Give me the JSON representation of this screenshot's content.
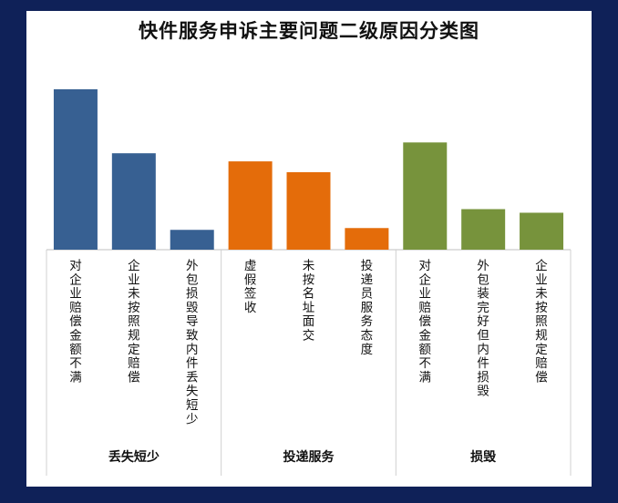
{
  "chart_data": {
    "type": "bar",
    "title": "快件服务申诉主要问题二级原因分类图",
    "xlabel": "",
    "ylabel": "",
    "ylim": [
      0,
      180
    ],
    "grid": false,
    "legend": "none",
    "groups": [
      {
        "label": "丢失短少",
        "color": "#376092",
        "categories": [
          "对企业赔偿金额不满",
          "企业未按照规定赔偿",
          "外包损毁导致内件丢失短少"
        ],
        "values": [
          178,
          107,
          22
        ]
      },
      {
        "label": "投递服务",
        "color": "#e46c0a",
        "categories": [
          "虚假签收",
          "未按名址面交",
          "投递员服务态度"
        ],
        "values": [
          98,
          86,
          24
        ]
      },
      {
        "label": "损毁",
        "color": "#77933c",
        "categories": [
          "对企业赔偿金额不满",
          "外包装完好但内件损毁",
          "企业未按照规定赔偿"
        ],
        "values": [
          119,
          45,
          41
        ]
      }
    ]
  }
}
